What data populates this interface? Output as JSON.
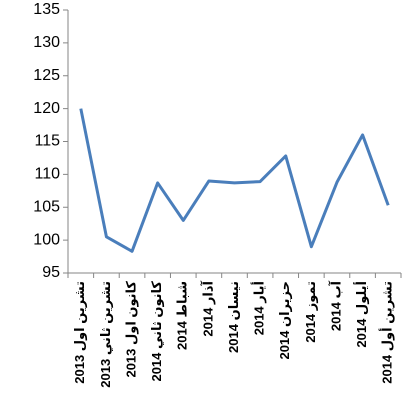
{
  "chart_data": {
    "type": "line",
    "categories": [
      "تشرين اول 2013",
      "تشرين ثاني 2013",
      "كانون اول 2013",
      "كانون ثاني 2014",
      "شباط 2014",
      "آذار 2014",
      "نيسان 2014",
      "أيار 2014",
      "حزيران 2014",
      "تموز 2014",
      "آب 2014",
      "أيلول 2014",
      "تشرين أول 2014"
    ],
    "values": [
      120,
      100.5,
      98.3,
      108.7,
      103,
      109,
      108.7,
      108.9,
      112.8,
      99,
      108.8,
      116,
      105.3
    ],
    "color": "#4a7ebb",
    "ylim": [
      95,
      135
    ],
    "yticks": [
      95,
      100,
      105,
      110,
      115,
      120,
      125,
      130,
      135
    ]
  }
}
